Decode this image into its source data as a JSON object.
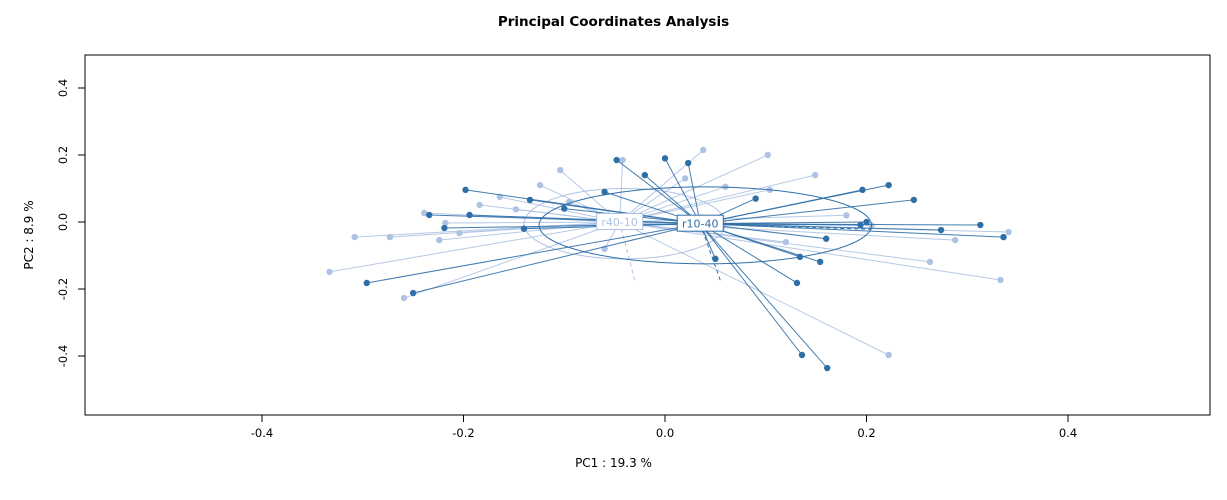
{
  "title": "Principal Coordinates Analysis",
  "axes": {
    "xlabel": "PC1 :  19.3 %",
    "ylabel": "PC2 :  8.9 %",
    "x_ticks": [
      -0.4,
      -0.2,
      0.0,
      0.2,
      0.4
    ],
    "x_tick_labels": [
      "-0.4",
      "-0.2",
      "0.0",
      "0.2",
      "0.4"
    ],
    "y_ticks": [
      -0.4,
      -0.2,
      0.0,
      0.2,
      0.4
    ],
    "y_tick_labels": [
      "-0.4",
      "-0.2",
      "0.0",
      "0.2",
      "0.4"
    ]
  },
  "chart_data": {
    "type": "scatter",
    "title": "Principal Coordinates Analysis",
    "xlabel": "PC1 :  19.3 %",
    "ylabel": "PC2 :  8.9 %",
    "xlim": [
      -0.575,
      0.54
    ],
    "ylim": [
      -0.576,
      0.498
    ],
    "grid": false,
    "legend": "none",
    "groups": [
      {
        "name": "r40-10",
        "color": "#aec3e3",
        "centroid": [
          -0.045,
          0.0
        ],
        "ellipse": {
          "cx": -0.04,
          "cy": -0.005,
          "rx": 0.1,
          "ry": 0.105
        },
        "points": [
          [
            -0.042,
            0.185
          ],
          [
            0.038,
            0.215
          ],
          [
            0.102,
            0.2
          ],
          [
            -0.104,
            0.155
          ],
          [
            -0.124,
            0.11
          ],
          [
            -0.164,
            0.075
          ],
          [
            -0.184,
            0.051
          ],
          [
            -0.239,
            0.027
          ],
          [
            -0.333,
            -0.149
          ],
          [
            -0.273,
            -0.045
          ],
          [
            -0.259,
            -0.227
          ],
          [
            -0.308,
            -0.045
          ],
          [
            -0.224,
            -0.054
          ],
          [
            0.149,
            0.14
          ],
          [
            0.104,
            0.096
          ],
          [
            0.263,
            -0.119
          ],
          [
            0.333,
            -0.173
          ],
          [
            0.222,
            -0.397
          ],
          [
            0.288,
            -0.054
          ],
          [
            0.341,
            -0.03
          ],
          [
            -0.218,
            -0.003
          ],
          [
            -0.204,
            -0.033
          ],
          [
            -0.148,
            0.038
          ],
          [
            -0.095,
            0.06
          ],
          [
            0.06,
            0.105
          ],
          [
            0.18,
            0.02
          ],
          [
            0.205,
            -0.01
          ],
          [
            0.12,
            -0.06
          ],
          [
            -0.06,
            -0.08
          ],
          [
            0.02,
            0.13
          ]
        ]
      },
      {
        "name": "r10-40",
        "color": "#2f6fa7",
        "centroid": [
          0.035,
          -0.005
        ],
        "ellipse": {
          "cx": 0.04,
          "cy": -0.01,
          "rx": 0.165,
          "ry": 0.115
        },
        "points": [
          [
            -0.048,
            0.185
          ],
          [
            0.0,
            0.19
          ],
          [
            0.023,
            0.176
          ],
          [
            -0.198,
            0.096
          ],
          [
            -0.134,
            0.066
          ],
          [
            0.196,
            0.096
          ],
          [
            0.222,
            0.11
          ],
          [
            0.313,
            -0.009
          ],
          [
            0.247,
            0.066
          ],
          [
            -0.234,
            0.021
          ],
          [
            -0.219,
            -0.018
          ],
          [
            -0.194,
            0.021
          ],
          [
            -0.296,
            -0.182
          ],
          [
            -0.25,
            -0.212
          ],
          [
            0.134,
            -0.104
          ],
          [
            0.154,
            -0.119
          ],
          [
            0.131,
            -0.182
          ],
          [
            0.136,
            -0.397
          ],
          [
            0.161,
            -0.436
          ],
          [
            0.336,
            -0.045
          ],
          [
            0.274,
            -0.024
          ],
          [
            0.194,
            -0.009
          ],
          [
            -0.06,
            0.09
          ],
          [
            -0.02,
            0.14
          ],
          [
            0.09,
            0.07
          ],
          [
            0.2,
            0.0
          ],
          [
            0.16,
            -0.05
          ],
          [
            -0.14,
            -0.02
          ],
          [
            0.05,
            -0.11
          ],
          [
            -0.1,
            0.04
          ]
        ]
      }
    ],
    "dashed_segments": [
      {
        "group": 0,
        "from": [
          -0.045,
          0.0
        ],
        "to": [
          -0.03,
          -0.175
        ]
      },
      {
        "group": 0,
        "from": [
          -0.045,
          0.0
        ],
        "to": [
          0.14,
          -0.012
        ]
      },
      {
        "group": 1,
        "from": [
          0.035,
          -0.005
        ],
        "to": [
          0.055,
          -0.175
        ]
      },
      {
        "group": 1,
        "from": [
          0.035,
          -0.005
        ],
        "to": [
          0.205,
          -0.022
        ]
      }
    ]
  }
}
